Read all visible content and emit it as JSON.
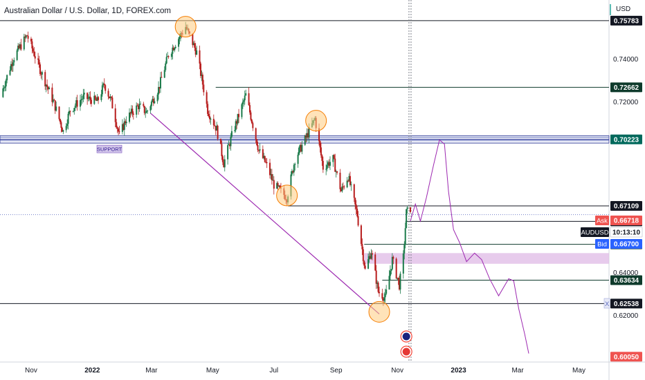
{
  "header": {
    "title": "Australian Dollar / U.S. Dollar, 1D, FOREX.com",
    "currency": "USD"
  },
  "colors": {
    "up": "#26a69a",
    "down": "#ef5350",
    "candle_up": "#1b7a4a",
    "candle_down": "#b71c1c",
    "drawing": "#9c27b0",
    "zone": "#e1bee7",
    "circle_fill": "#ffcc80",
    "circle_stroke": "#f57c00"
  },
  "chart_data": {
    "type": "candlestick",
    "title": "Australian Dollar / U.S. Dollar, 1D, FOREX.com",
    "ylim": [
      0.598,
      0.7675
    ],
    "xlim": [
      "2021-10-01",
      "2023-05-31"
    ],
    "y_ticks": [
      "0.74000",
      "0.72000",
      "0.64000",
      "0.62000"
    ],
    "x_ticks": [
      {
        "label": "Nov",
        "date": "2021-11-01"
      },
      {
        "label": "2022",
        "date": "2022-01-01"
      },
      {
        "label": "Mar",
        "date": "2022-03-01"
      },
      {
        "label": "May",
        "date": "2022-05-01"
      },
      {
        "label": "Jul",
        "date": "2022-07-01"
      },
      {
        "label": "Sep",
        "date": "2022-09-01"
      },
      {
        "label": "Nov",
        "date": "2022-11-01"
      },
      {
        "label": "2023",
        "date": "2023-01-01"
      },
      {
        "label": "Mar",
        "date": "2023-03-01"
      },
      {
        "label": "May",
        "date": "2023-05-01"
      }
    ],
    "price_path": [
      [
        "2021-10-01",
        0.722
      ],
      [
        "2021-10-14",
        0.74
      ],
      [
        "2021-10-28",
        0.751
      ],
      [
        "2021-11-10",
        0.735
      ],
      [
        "2021-11-24",
        0.719
      ],
      [
        "2021-12-03",
        0.706
      ],
      [
        "2021-12-10",
        0.716
      ],
      [
        "2021-12-23",
        0.722
      ],
      [
        "2022-01-06",
        0.72
      ],
      [
        "2022-01-13",
        0.728
      ],
      [
        "2022-01-20",
        0.72
      ],
      [
        "2022-01-28",
        0.704
      ],
      [
        "2022-02-04",
        0.712
      ],
      [
        "2022-02-16",
        0.718
      ],
      [
        "2022-02-24",
        0.715
      ],
      [
        "2022-03-08",
        0.726
      ],
      [
        "2022-03-18",
        0.742
      ],
      [
        "2022-04-04",
        0.755
      ],
      [
        "2022-04-15",
        0.743
      ],
      [
        "2022-04-26",
        0.716
      ],
      [
        "2022-05-05",
        0.707
      ],
      [
        "2022-05-12",
        0.691
      ],
      [
        "2022-05-20",
        0.704
      ],
      [
        "2022-06-03",
        0.723
      ],
      [
        "2022-06-16",
        0.697
      ],
      [
        "2022-06-24",
        0.69
      ],
      [
        "2022-07-01",
        0.681
      ],
      [
        "2022-07-14",
        0.675
      ],
      [
        "2022-07-22",
        0.693
      ],
      [
        "2022-08-02",
        0.703
      ],
      [
        "2022-08-11",
        0.712
      ],
      [
        "2022-08-19",
        0.689
      ],
      [
        "2022-08-29",
        0.693
      ],
      [
        "2022-09-06",
        0.678
      ],
      [
        "2022-09-13",
        0.685
      ],
      [
        "2022-09-22",
        0.667
      ],
      [
        "2022-09-30",
        0.641
      ],
      [
        "2022-10-06",
        0.65
      ],
      [
        "2022-10-13",
        0.631
      ],
      [
        "2022-10-20",
        0.628
      ],
      [
        "2022-10-27",
        0.646
      ],
      [
        "2022-11-03",
        0.634
      ],
      [
        "2022-11-07",
        0.647
      ],
      [
        "2022-11-10",
        0.668
      ],
      [
        "2022-11-14",
        0.67
      ]
    ],
    "levels": [
      {
        "price": "0.75783",
        "value": 0.75783,
        "start": "2021-10-01",
        "label_bg": "#131722",
        "line_color": "#131722"
      },
      {
        "price": "0.72662",
        "value": 0.72662,
        "start": "2022-05-04",
        "label_bg": "#0e3a2b",
        "line_color": "#0e3a2b"
      },
      {
        "price": "0.70223",
        "value": 0.70223,
        "start": "2021-10-01",
        "label_bg": "#00695c",
        "line_color": "#283593"
      },
      {
        "price": "0.67109",
        "value": 0.67109,
        "start": "2022-07-15",
        "label_bg": "#131722",
        "line_color": "#131722"
      },
      {
        "price": "0.66388",
        "value": 0.66388,
        "start": "2022-11-09",
        "label_bg": "#131722",
        "line_color": "#131722"
      },
      {
        "price": "0.65310",
        "value": 0.6531,
        "start": "2022-09-29",
        "label_bg": "#0e3a2b",
        "line_color": "#0e3a2b"
      },
      {
        "price": "0.63634",
        "value": 0.63634,
        "start": "2022-10-17",
        "label_bg": "#0e3a2b",
        "line_color": "#0e3a2b"
      },
      {
        "price": "0.62538",
        "value": 0.62538,
        "start": "2021-10-01",
        "label_bg": "#131722",
        "line_color": "#131722"
      }
    ],
    "support_zone": {
      "top": 0.704,
      "bottom": 0.7005
    },
    "support_label": "SUPPORT",
    "demand_zone": {
      "top": 0.649,
      "bottom": 0.644,
      "start": "2022-09-29"
    },
    "trendline": [
      [
        "2022-02-28",
        0.7145
      ],
      [
        "2022-10-14",
        0.6205
      ]
    ],
    "circles": [
      {
        "date": "2022-04-04",
        "price": 0.755
      },
      {
        "date": "2022-07-14",
        "price": 0.676
      },
      {
        "date": "2022-08-12",
        "price": 0.711
      },
      {
        "date": "2022-10-14",
        "price": 0.6215
      }
    ],
    "projection": [
      [
        "2022-11-14",
        0.664
      ],
      [
        "2022-11-19",
        0.672
      ],
      [
        "2022-11-24",
        0.664
      ],
      [
        "2022-11-30",
        0.675
      ],
      [
        "2022-12-07",
        0.69
      ],
      [
        "2022-12-13",
        0.702
      ],
      [
        "2022-12-18",
        0.7
      ],
      [
        "2022-12-22",
        0.678
      ],
      [
        "2022-12-27",
        0.66
      ],
      [
        "2023-01-02",
        0.654
      ],
      [
        "2023-01-09",
        0.645
      ],
      [
        "2023-01-17",
        0.649
      ],
      [
        "2023-01-24",
        0.646
      ],
      [
        "2023-02-01",
        0.637
      ],
      [
        "2023-02-10",
        0.629
      ],
      [
        "2023-02-20",
        0.637
      ],
      [
        "2023-02-25",
        0.636
      ],
      [
        "2023-03-02",
        0.623
      ],
      [
        "2023-03-08",
        0.611
      ],
      [
        "2023-03-12",
        0.602
      ]
    ],
    "now_date": "2022-11-14",
    "ask_price": "0.66718",
    "ask_label": "Ask",
    "bid_price": "0.66700",
    "bid_label": "Bid",
    "symbol_label": "AUDUSD",
    "countdown": "10:13:10",
    "current_value": 0.667,
    "bottom_price": "0.60050",
    "bottom_value": 0.6005,
    "grid": false,
    "legend": "none"
  }
}
